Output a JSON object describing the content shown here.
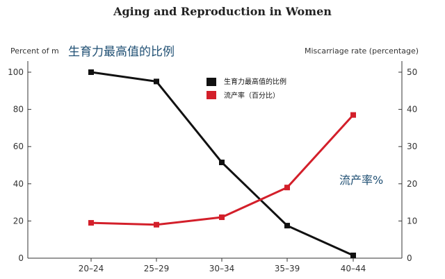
{
  "chart_data": {
    "type": "line",
    "title": "Aging and Reproduction in Women",
    "ylabel_left": "Percent of m",
    "ylabel_left_overlay": "生育力最高值的比例",
    "ylabel_right": "Miscarriage rate (percentage)",
    "categories": [
      "20–24",
      "25–29",
      "30–34",
      "35–39",
      "40–44"
    ],
    "left_axis": {
      "min": 0,
      "max": 100,
      "ticks": [
        "0",
        "20",
        "40",
        "60",
        "80",
        "100"
      ]
    },
    "right_axis": {
      "min": 0,
      "max": 50,
      "ticks": [
        "0",
        "10",
        "20",
        "30",
        "40",
        "50"
      ]
    },
    "series": [
      {
        "name": "生育力最高值的比例",
        "axis": "left",
        "color": "#111111",
        "values": [
          100,
          95,
          51.5,
          17.5,
          1.5
        ]
      },
      {
        "name": "流产率（百分比）",
        "axis": "right",
        "color": "#d31f2a",
        "values": [
          9.5,
          9,
          11,
          19,
          38.5
        ]
      }
    ],
    "annotation_right": "流产率%",
    "grid": false,
    "legend_placement": "top-center"
  }
}
